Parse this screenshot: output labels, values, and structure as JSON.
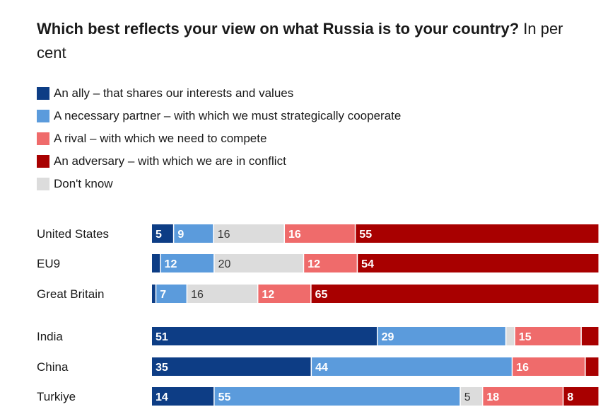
{
  "title_bold": "Which best reflects your view on what Russia is to your country?",
  "title_light": " In per cent",
  "colors": {
    "ally": "#0d3d85",
    "partner": "#5b9bdc",
    "dontknow": "#dcdcdc",
    "rival": "#ef6b6b",
    "adversary": "#a80000"
  },
  "legend": [
    {
      "key": "ally",
      "label": "An ally – that shares our interests and values"
    },
    {
      "key": "partner",
      "label": "A necessary partner – with which we must strategically cooperate"
    },
    {
      "key": "rival",
      "label": "A rival – with which we need to compete"
    },
    {
      "key": "adversary",
      "label": "An adversary – with which we are in conflict"
    },
    {
      "key": "dontknow",
      "label": "Don't know"
    }
  ],
  "chart_data": {
    "type": "bar",
    "orientation": "horizontal-stacked-100",
    "categories": [
      "United States",
      "EU9",
      "Great Britain",
      "India",
      "China",
      "Turkiye"
    ],
    "series": [
      {
        "key": "ally",
        "name": "An ally – that shares our interests and values",
        "values": [
          5,
          2,
          1,
          51,
          35,
          14
        ],
        "labels": [
          "5",
          "",
          "",
          "51",
          "35",
          "14"
        ]
      },
      {
        "key": "partner",
        "name": "A necessary partner – with which we must strategically cooperate",
        "values": [
          9,
          12,
          7,
          29,
          44,
          55
        ],
        "labels": [
          "9",
          "12",
          "7",
          "29",
          "44",
          "55"
        ]
      },
      {
        "key": "dontknow",
        "name": "Don't know",
        "values": [
          16,
          20,
          16,
          2,
          0,
          5
        ],
        "labels": [
          "16",
          "20",
          "16",
          "",
          "",
          "5"
        ]
      },
      {
        "key": "rival",
        "name": "A rival – with which we need to compete",
        "values": [
          16,
          12,
          12,
          15,
          16,
          18
        ],
        "labels": [
          "16",
          "12",
          "12",
          "15",
          "16",
          "18"
        ]
      },
      {
        "key": "adversary",
        "name": "An adversary – with which we are in conflict",
        "values": [
          55,
          54,
          65,
          4,
          3,
          8
        ],
        "labels": [
          "55",
          "54",
          "65",
          "",
          "",
          "8"
        ]
      }
    ],
    "groups": [
      [
        0,
        1,
        2
      ],
      [
        3,
        4,
        5
      ]
    ],
    "xlim": [
      0,
      100
    ]
  }
}
